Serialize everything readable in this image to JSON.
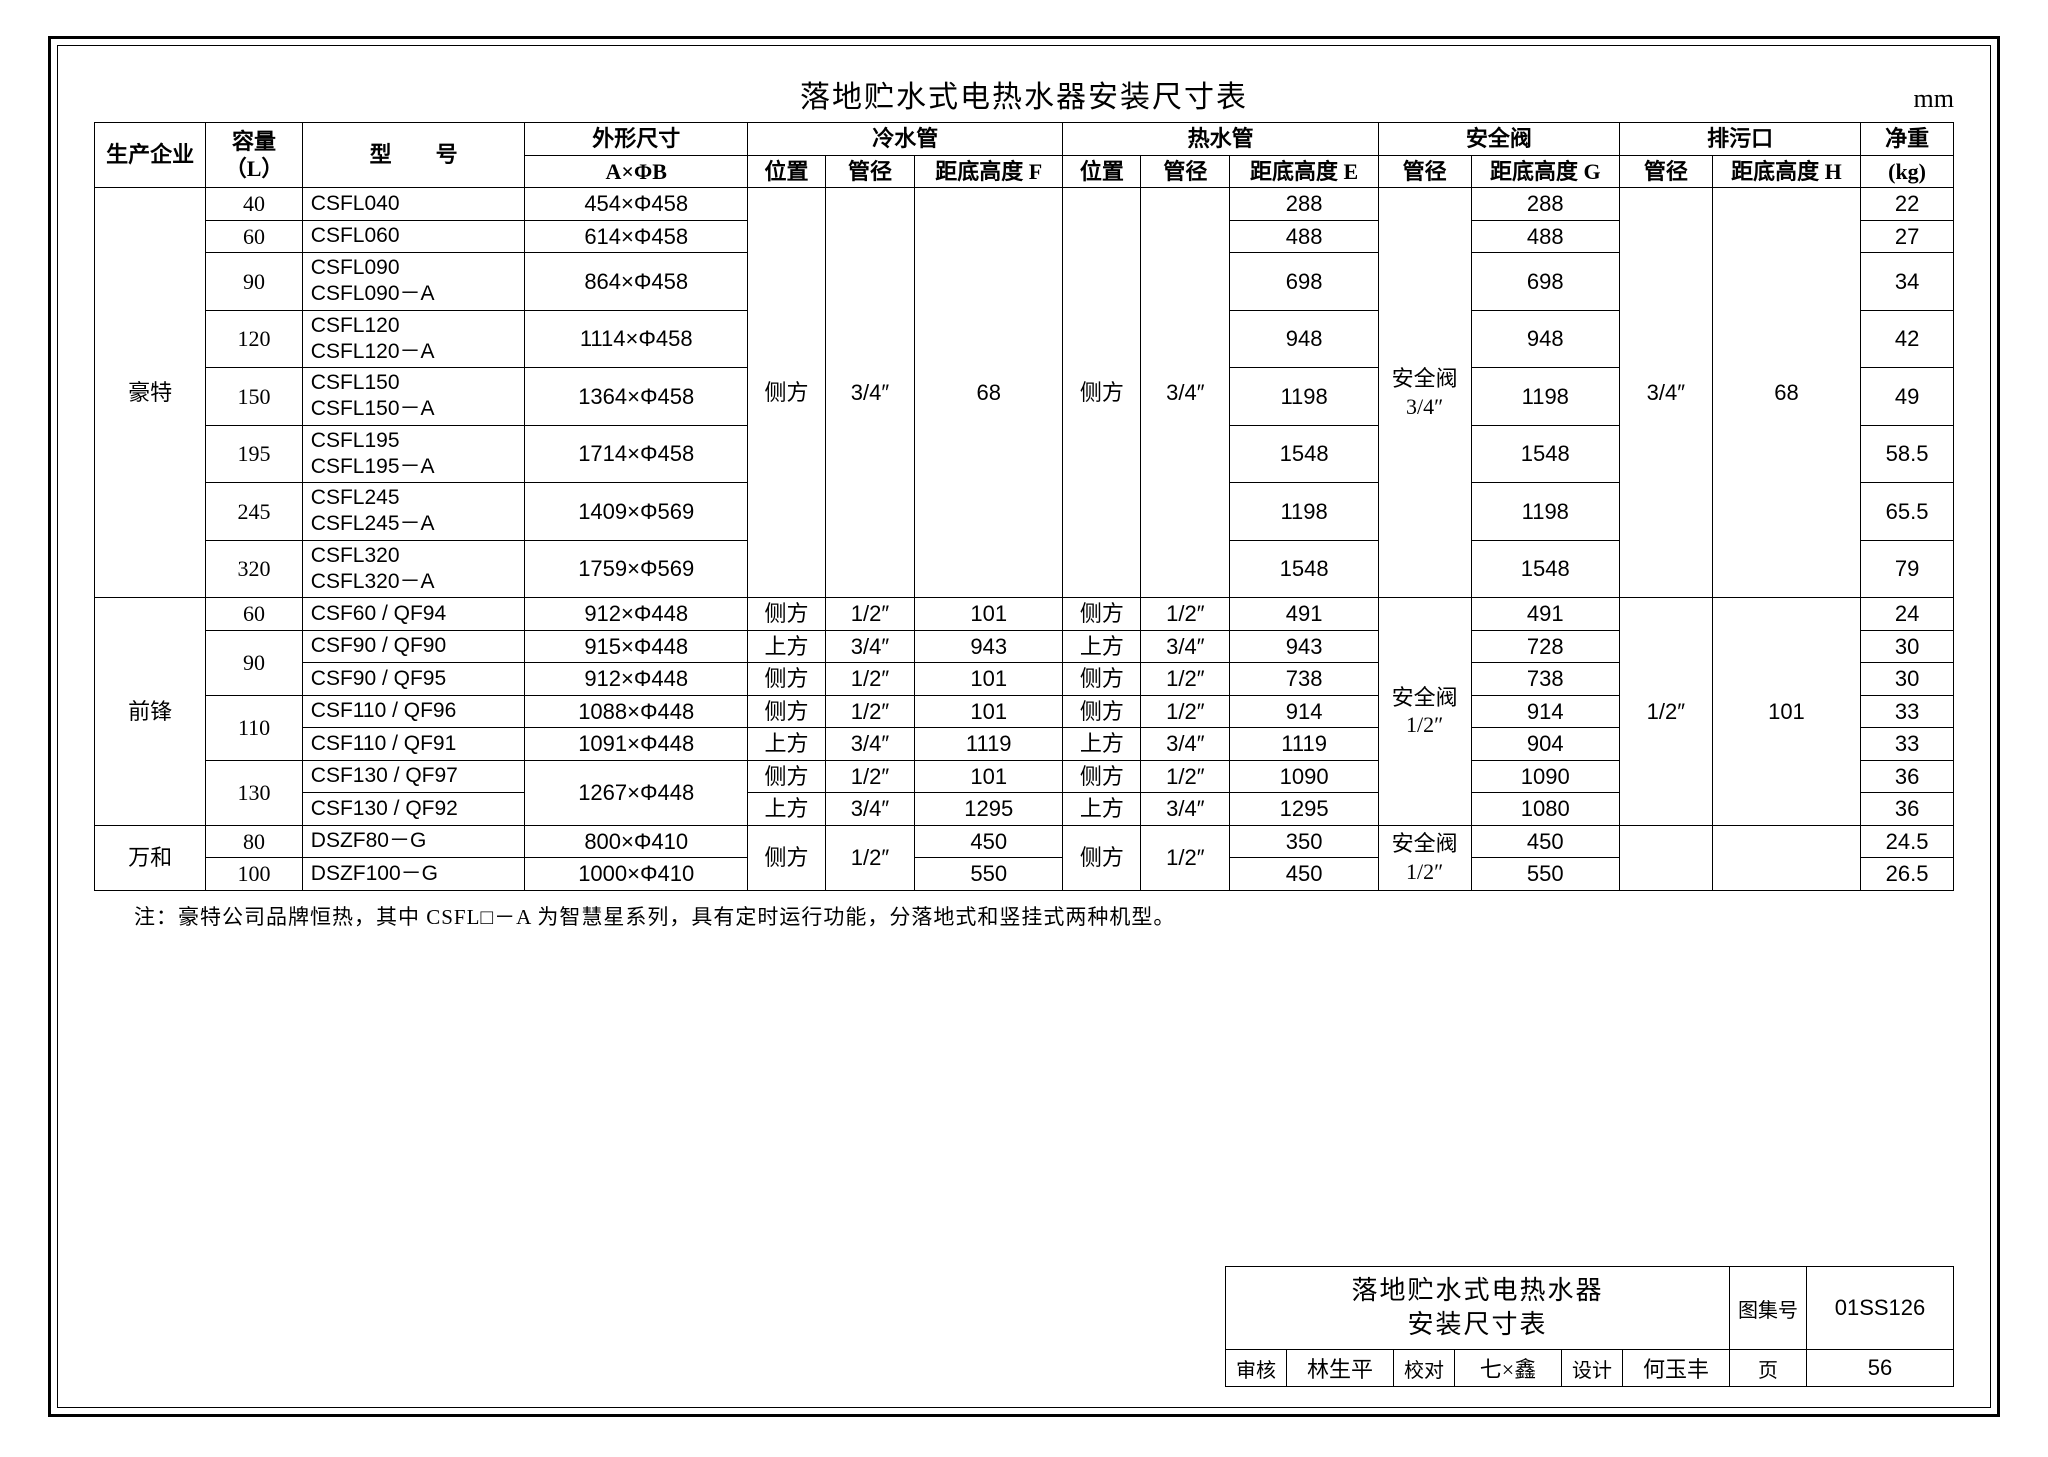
{
  "page": {
    "title": "落地贮水式电热水器安装尺寸表",
    "unit": "mm",
    "note": "注：豪特公司品牌恒热，其中 CSFL□－A 为智慧星系列，具有定时运行功能，分落地式和竖挂式两种机型。"
  },
  "colors": {
    "border": "#000000",
    "background": "#ffffff",
    "text": "#000000"
  },
  "typography": {
    "title_size_pt": 22,
    "header_size_pt": 16,
    "body_size_pt": 16,
    "font_family": "SimSun"
  },
  "table": {
    "col_widths_pct": [
      6.0,
      5.2,
      12.0,
      12.0,
      4.2,
      4.8,
      8.0,
      4.2,
      4.8,
      8.0,
      5.0,
      8.0,
      5.0,
      8.0,
      5.0
    ],
    "header": {
      "r1": {
        "mfr": "生产企业",
        "cap": "容量（L）",
        "model": "型　　号",
        "dim": "外形尺寸",
        "cold": "冷水管",
        "hot": "热水管",
        "safety": "安全阀",
        "drain": "排污口",
        "weight": "净重"
      },
      "r2": {
        "dim_sub": "A×ΦB",
        "pos": "位置",
        "dia": "管径",
        "hF": "距底高度 F",
        "hE": "距底高度 E",
        "hG": "距底高度 G",
        "hH": "距底高度 H",
        "weight_sub": "(kg)"
      }
    },
    "groups": [
      {
        "mfr": "豪特",
        "shared": {
          "cold_pos": "侧方",
          "cold_dia": "3/4″",
          "cold_h": "68",
          "hot_pos": "侧方",
          "hot_dia": "3/4″",
          "safety_dia": "安全阀\n3/4″",
          "drain_dia": "3/4″",
          "drain_h": "68"
        },
        "rows": [
          {
            "cap": "40",
            "model": "CSFL040",
            "dim": "454×Φ458",
            "hotE": "288",
            "safG": "288",
            "wt": "22"
          },
          {
            "cap": "60",
            "model": "CSFL060",
            "dim": "614×Φ458",
            "hotE": "488",
            "safG": "488",
            "wt": "27"
          },
          {
            "cap": "90",
            "model": "CSFL090\nCSFL090－A",
            "dim": "864×Φ458",
            "hotE": "698",
            "safG": "698",
            "wt": "34"
          },
          {
            "cap": "120",
            "model": "CSFL120\nCSFL120－A",
            "dim": "1114×Φ458",
            "hotE": "948",
            "safG": "948",
            "wt": "42"
          },
          {
            "cap": "150",
            "model": "CSFL150\nCSFL150－A",
            "dim": "1364×Φ458",
            "hotE": "1198",
            "safG": "1198",
            "wt": "49"
          },
          {
            "cap": "195",
            "model": "CSFL195\nCSFL195－A",
            "dim": "1714×Φ458",
            "hotE": "1548",
            "safG": "1548",
            "wt": "58.5"
          },
          {
            "cap": "245",
            "model": "CSFL245\nCSFL245－A",
            "dim": "1409×Φ569",
            "hotE": "1198",
            "safG": "1198",
            "wt": "65.5"
          },
          {
            "cap": "320",
            "model": "CSFL320\nCSFL320－A",
            "dim": "1759×Φ569",
            "hotE": "1548",
            "safG": "1548",
            "wt": "79"
          }
        ]
      },
      {
        "mfr": "前锋",
        "shared": {
          "safety_dia": "安全阀\n1/2″",
          "drain_dia": "1/2″",
          "drain_h": "101"
        },
        "rows": [
          {
            "cap": "60",
            "model": "CSF60 / QF94",
            "dim": "912×Φ448",
            "cold_pos": "侧方",
            "cold_dia": "1/2″",
            "coldF": "101",
            "hot_pos": "侧方",
            "hot_dia": "1/2″",
            "hotE": "491",
            "safG": "491",
            "wt": "24"
          },
          {
            "cap": "90",
            "cap_span": 2,
            "model": "CSF90 / QF90",
            "dim": "915×Φ448",
            "cold_pos": "上方",
            "cold_dia": "3/4″",
            "coldF": "943",
            "hot_pos": "上方",
            "hot_dia": "3/4″",
            "hotE": "943",
            "safG": "728",
            "wt": "30"
          },
          {
            "model": "CSF90 / QF95",
            "dim": "912×Φ448",
            "cold_pos": "侧方",
            "cold_dia": "1/2″",
            "coldF": "101",
            "hot_pos": "侧方",
            "hot_dia": "1/2″",
            "hotE": "738",
            "safG": "738",
            "wt": "30"
          },
          {
            "cap": "110",
            "cap_span": 2,
            "model": "CSF110 / QF96",
            "dim": "1088×Φ448",
            "cold_pos": "侧方",
            "cold_dia": "1/2″",
            "coldF": "101",
            "hot_pos": "侧方",
            "hot_dia": "1/2″",
            "hotE": "914",
            "safG": "914",
            "wt": "33"
          },
          {
            "model": "CSF110 / QF91",
            "dim": "1091×Φ448",
            "cold_pos": "上方",
            "cold_dia": "3/4″",
            "coldF": "1119",
            "hot_pos": "上方",
            "hot_dia": "3/4″",
            "hotE": "1119",
            "safG": "904",
            "wt": "33"
          },
          {
            "cap": "130",
            "cap_span": 2,
            "model": "CSF130 / QF97",
            "dim": "1267×Φ448",
            "dim_span": 2,
            "cold_pos": "侧方",
            "cold_dia": "1/2″",
            "coldF": "101",
            "hot_pos": "侧方",
            "hot_dia": "1/2″",
            "hotE": "1090",
            "safG": "1090",
            "wt": "36"
          },
          {
            "model": "CSF130 / QF92",
            "cold_pos": "上方",
            "cold_dia": "3/4″",
            "coldF": "1295",
            "hot_pos": "上方",
            "hot_dia": "3/4″",
            "hotE": "1295",
            "safG": "1080",
            "wt": "36"
          }
        ]
      },
      {
        "mfr": "万和",
        "shared": {
          "cold_pos": "侧方",
          "cold_dia": "1/2″",
          "hot_pos": "侧方",
          "hot_dia": "1/2″",
          "safety_dia": "安全阀\n1/2″",
          "drain_dia": "",
          "drain_h": ""
        },
        "rows": [
          {
            "cap": "80",
            "model": "DSZF80－G",
            "dim": "800×Φ410",
            "coldF": "450",
            "hotE": "350",
            "safG": "450",
            "wt": "24.5"
          },
          {
            "cap": "100",
            "model": "DSZF100－G",
            "dim": "1000×Φ410",
            "coldF": "550",
            "hotE": "450",
            "safG": "550",
            "wt": "26.5"
          }
        ]
      }
    ]
  },
  "titleblock": {
    "main_line1": "落地贮水式电热水器",
    "main_line2": "安装尺寸表",
    "series_label": "图集号",
    "series_value": "01SS126",
    "review_label": "审核",
    "review_sig": "林生平",
    "check_label": "校对",
    "check_sig": "七×鑫",
    "design_label": "设计",
    "design_sig": "何玉丰",
    "page_label": "页",
    "page_value": "56"
  }
}
